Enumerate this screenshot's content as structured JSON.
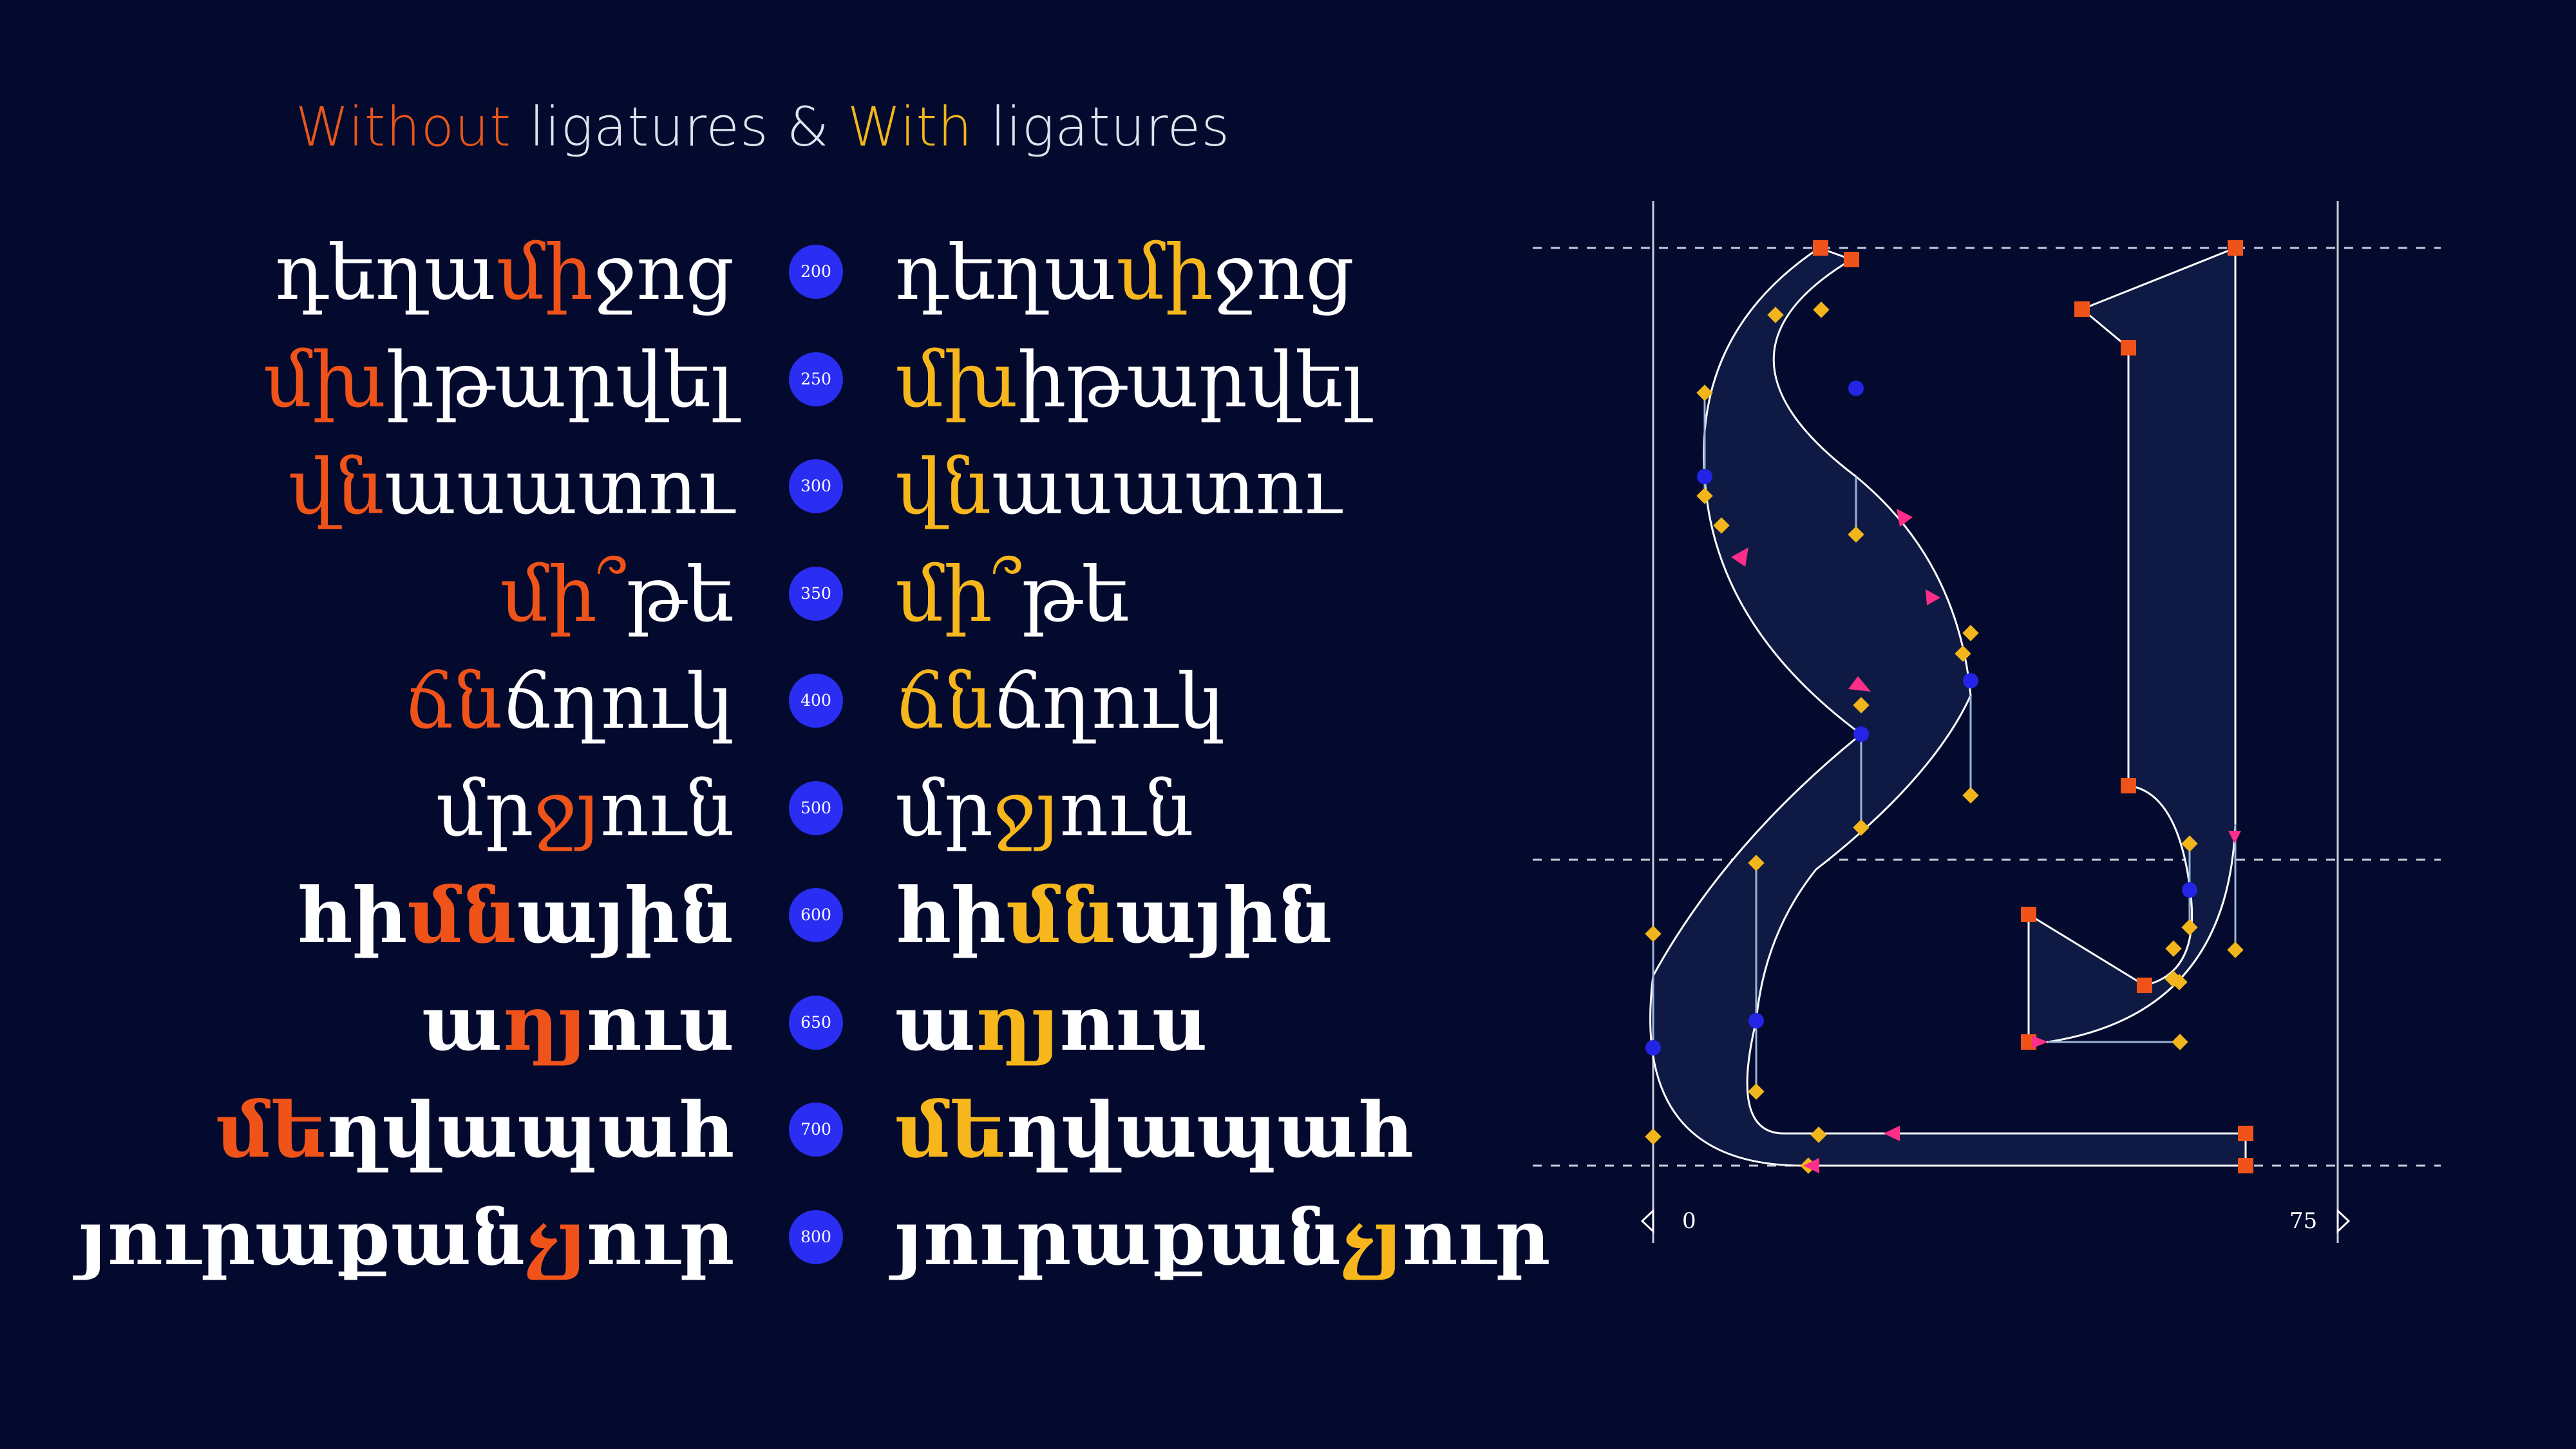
{
  "heading": {
    "without": "Without",
    "ligatures1": " ligatures & ",
    "with": "With",
    "ligatures2": " ligatures"
  },
  "rows": [
    {
      "weight": "200",
      "pre": "դեղա",
      "lig": "մի",
      "post": "ջոց"
    },
    {
      "weight": "250",
      "pre": "",
      "lig": "մխ",
      "post": "իթարվել"
    },
    {
      "weight": "300",
      "pre": "",
      "lig": "վն",
      "post": "ասատու"
    },
    {
      "weight": "350",
      "pre": "",
      "lig": "մի՞",
      "post": "թե"
    },
    {
      "weight": "400",
      "pre": "",
      "lig": "ճն",
      "post": "ճղուկ"
    },
    {
      "weight": "500",
      "pre": "մր",
      "lig": "ջյ",
      "post": "ուն"
    },
    {
      "weight": "600",
      "pre": "հի",
      "lig": "մն",
      "post": "ային"
    },
    {
      "weight": "650",
      "pre": "ա",
      "lig": "ղյ",
      "post": "ուս"
    },
    {
      "weight": "700",
      "pre": "",
      "lig": "մե",
      "post": "ղվապահ"
    },
    {
      "weight": "800",
      "pre": "յուրաքան",
      "lig": "չյ",
      "post": "ուր"
    }
  ],
  "metrics": {
    "left_label": "0",
    "right_label": "75"
  },
  "colors": {
    "background": "#030a2e",
    "without_accent": "#f0531a",
    "with_accent": "#f6b61c",
    "badge": "#2a2df2",
    "glyph_fill": "#0e1a44",
    "on_curve_point": "#2424e6",
    "corner_point": "#f0531a",
    "handle": "#f2b51c",
    "direction_arrow": "#ff2e8a"
  }
}
